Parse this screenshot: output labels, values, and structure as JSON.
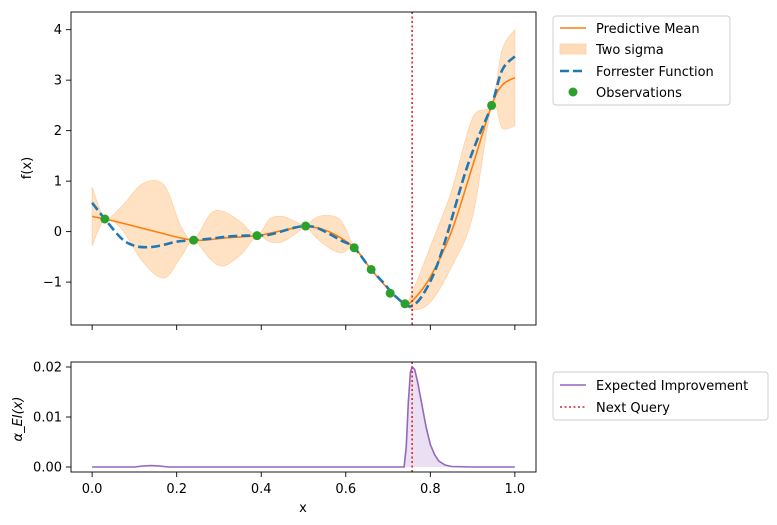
{
  "chart_data": [
    {
      "type": "line",
      "panel": "top",
      "title": "",
      "xlabel": "",
      "ylabel": "f(x)",
      "xlim": [
        -0.05,
        1.05
      ],
      "ylim": [
        -1.85,
        4.35
      ],
      "x_ticks": [
        0.0,
        0.2,
        0.4,
        0.6,
        0.8,
        1.0
      ],
      "x_tick_labels_shown": false,
      "y_ticks": [
        -1,
        0,
        1,
        2,
        3,
        4
      ],
      "y_tick_labels": [
        "−1",
        "0",
        "1",
        "2",
        "3",
        "4"
      ],
      "grid": false,
      "legend_position": "outside-right-top",
      "series": [
        {
          "name": "Predictive Mean",
          "color": "#ff7f0e",
          "style": "solid",
          "x": [
            0.0,
            0.03,
            0.08,
            0.15,
            0.24,
            0.32,
            0.39,
            0.45,
            0.505,
            0.56,
            0.62,
            0.66,
            0.71,
            0.74,
            0.76,
            0.8,
            0.85,
            0.9,
            0.945,
            0.97,
            1.0
          ],
          "y": [
            0.3,
            0.25,
            0.15,
            0.0,
            -0.17,
            -0.12,
            -0.08,
            0.02,
            0.1,
            0.0,
            -0.32,
            -0.75,
            -1.22,
            -1.42,
            -1.35,
            -0.9,
            0.0,
            1.3,
            2.5,
            2.9,
            3.05
          ]
        },
        {
          "name": "Two sigma",
          "color": "#ffdcb9",
          "style": "band",
          "x": [
            0.0,
            0.03,
            0.07,
            0.12,
            0.17,
            0.21,
            0.24,
            0.28,
            0.31,
            0.35,
            0.39,
            0.42,
            0.45,
            0.48,
            0.505,
            0.53,
            0.56,
            0.59,
            0.62,
            0.66,
            0.71,
            0.74,
            0.76,
            0.8,
            0.85,
            0.9,
            0.945,
            0.97,
            1.0
          ],
          "lower": [
            -0.28,
            0.24,
            0.05,
            -0.6,
            -0.92,
            -0.5,
            -0.18,
            -0.55,
            -0.68,
            -0.47,
            -0.09,
            -0.2,
            -0.2,
            -0.05,
            0.09,
            -0.12,
            -0.32,
            -0.42,
            -0.33,
            -0.76,
            -1.23,
            -1.43,
            -1.55,
            -1.4,
            -0.7,
            0.3,
            2.48,
            2.05,
            2.1
          ],
          "upper": [
            0.88,
            0.27,
            0.5,
            0.95,
            0.92,
            0.1,
            -0.16,
            0.35,
            0.4,
            0.2,
            -0.07,
            0.25,
            0.3,
            0.2,
            0.12,
            0.28,
            0.32,
            0.2,
            -0.31,
            -0.74,
            -1.21,
            -1.41,
            -1.15,
            -0.3,
            0.8,
            2.25,
            2.52,
            3.6,
            4.0
          ]
        },
        {
          "name": "Forrester Function",
          "color": "#1f77b4",
          "style": "dashed",
          "x": [
            0.0,
            0.03,
            0.07,
            0.1,
            0.13,
            0.16,
            0.2,
            0.24,
            0.28,
            0.32,
            0.36,
            0.39,
            0.42,
            0.45,
            0.48,
            0.505,
            0.53,
            0.56,
            0.59,
            0.62,
            0.66,
            0.69,
            0.71,
            0.74,
            0.757,
            0.78,
            0.81,
            0.84,
            0.88,
            0.91,
            0.945,
            0.97,
            1.0
          ],
          "y": [
            0.57,
            0.25,
            -0.14,
            -0.28,
            -0.31,
            -0.28,
            -0.2,
            -0.17,
            -0.14,
            -0.1,
            -0.08,
            -0.08,
            -0.06,
            0.01,
            0.08,
            0.11,
            0.08,
            -0.04,
            -0.18,
            -0.32,
            -0.75,
            -1.02,
            -1.22,
            -1.44,
            -1.47,
            -1.28,
            -0.8,
            -0.05,
            1.1,
            1.8,
            2.5,
            3.2,
            3.47
          ]
        },
        {
          "name": "Observations",
          "color": "#2ca02c",
          "style": "scatter",
          "x": [
            0.03,
            0.24,
            0.39,
            0.505,
            0.62,
            0.66,
            0.705,
            0.74,
            0.945
          ],
          "y": [
            0.25,
            -0.17,
            -0.08,
            0.11,
            -0.32,
            -0.75,
            -1.22,
            -1.43,
            2.5
          ]
        }
      ],
      "vline": {
        "name": "Next Query",
        "x": 0.757,
        "color": "#d62728"
      }
    },
    {
      "type": "area",
      "panel": "bottom",
      "title": "",
      "xlabel": "x",
      "ylabel": "α_EI(x)",
      "xlim": [
        -0.05,
        1.05
      ],
      "ylim": [
        -0.001,
        0.021
      ],
      "x_ticks": [
        0.0,
        0.2,
        0.4,
        0.6,
        0.8,
        1.0
      ],
      "x_tick_labels": [
        "0.0",
        "0.2",
        "0.4",
        "0.6",
        "0.8",
        "1.0"
      ],
      "y_ticks": [
        0.0,
        0.01,
        0.02
      ],
      "y_tick_labels": [
        "0.00",
        "0.01",
        "0.02"
      ],
      "grid": false,
      "legend_position": "outside-right-top",
      "series": [
        {
          "name": "Expected Improvement",
          "color": "#9467bd",
          "fill": "#e8dcf2",
          "x": [
            0.0,
            0.1,
            0.12,
            0.14,
            0.16,
            0.18,
            0.3,
            0.6,
            0.738,
            0.743,
            0.748,
            0.753,
            0.757,
            0.763,
            0.77,
            0.78,
            0.79,
            0.8,
            0.81,
            0.82,
            0.835,
            0.85,
            0.9,
            1.0
          ],
          "y": [
            0.0,
            0.0,
            0.0002,
            0.0003,
            0.0002,
            0.0,
            0.0,
            0.0,
            0.0,
            0.004,
            0.013,
            0.019,
            0.02,
            0.0195,
            0.017,
            0.0125,
            0.008,
            0.0045,
            0.0025,
            0.0012,
            0.0004,
            0.0001,
            0.0,
            0.0
          ]
        }
      ],
      "vline": {
        "name": "Next Query",
        "x": 0.757,
        "color": "#d62728"
      }
    }
  ]
}
